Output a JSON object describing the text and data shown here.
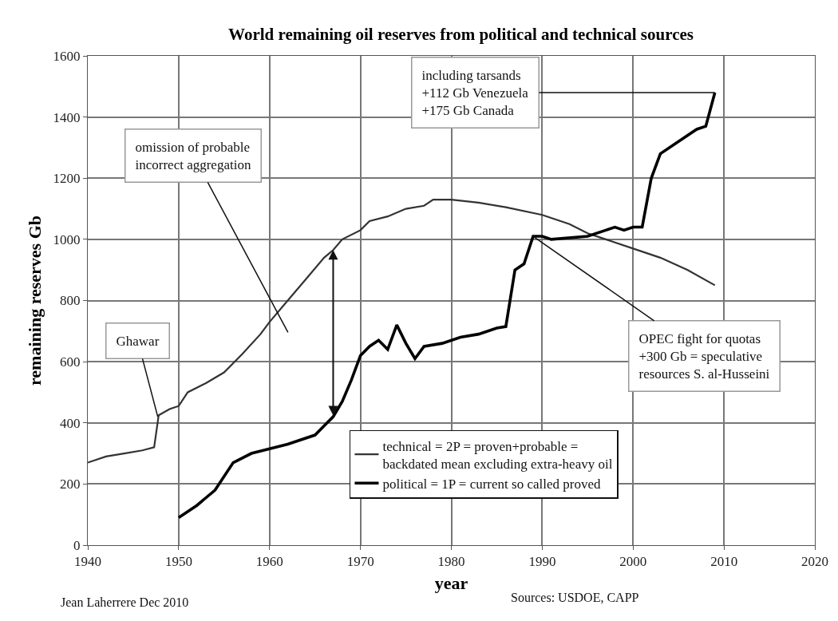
{
  "chart_data": {
    "type": "line",
    "title": "World remaining oil reserves from political and technical sources",
    "xlabel": "year",
    "ylabel": "remaining reserves Gb",
    "series": [
      {
        "name": "technical = 2P = proven+probable = backdated mean excluding extra-heavy oil",
        "color": "#333333",
        "x": [
          1940,
          1942,
          1944,
          1946,
          1947.3,
          1947.8,
          1949,
          1950,
          1951,
          1953,
          1955,
          1957,
          1959,
          1960,
          1962,
          1964,
          1966,
          1967,
          1968,
          1970,
          1971,
          1973,
          1975,
          1977,
          1978,
          1980,
          1983,
          1986,
          1990,
          1993,
          1995,
          1997,
          2000,
          2003,
          2006,
          2009
        ],
        "values": [
          270,
          290,
          300,
          310,
          320,
          425,
          445,
          455,
          500,
          530,
          565,
          625,
          690,
          730,
          800,
          870,
          940,
          965,
          1000,
          1030,
          1060,
          1075,
          1100,
          1110,
          1130,
          1130,
          1120,
          1105,
          1080,
          1050,
          1020,
          1000,
          970,
          940,
          900,
          850
        ]
      },
      {
        "name": "political = 1P = current so called proved",
        "color": "#000000",
        "x": [
          1950,
          1952,
          1954,
          1956,
          1958,
          1960,
          1962,
          1965,
          1966,
          1967,
          1968,
          1969,
          1970,
          1971,
          1972,
          1973,
          1974,
          1975,
          1976,
          1977,
          1979,
          1981,
          1983,
          1985,
          1986,
          1987,
          1988,
          1989,
          1990,
          1991,
          1995,
          1997,
          1998,
          1999,
          2000,
          2001,
          2002,
          2003,
          2005,
          2007,
          2008,
          2009
        ],
        "values": [
          90,
          130,
          180,
          270,
          300,
          315,
          330,
          360,
          390,
          420,
          470,
          540,
          620,
          650,
          670,
          640,
          720,
          660,
          610,
          650,
          660,
          680,
          690,
          710,
          715,
          900,
          920,
          1010,
          1010,
          1000,
          1010,
          1030,
          1040,
          1030,
          1040,
          1040,
          1200,
          1280,
          1320,
          1360,
          1370,
          1480
        ]
      }
    ],
    "xlim": [
      1940,
      2020
    ],
    "xticks": [
      1940,
      1950,
      1960,
      1970,
      1980,
      1990,
      2000,
      2010,
      2020
    ],
    "ylim": [
      0,
      1600
    ],
    "yticks": [
      0,
      200,
      400,
      600,
      800,
      1000,
      1200,
      1400,
      1600
    ],
    "grid": true,
    "legend": "bottom right",
    "marker": "none",
    "line_style": "solid",
    "annotations": [
      {
        "text": "Ghawar",
        "x": 1947.7,
        "y": 420
      },
      {
        "text": "omission of probable\nincorrect aggregation",
        "x": 1967,
        "y": 420
      },
      {
        "text": "including tarsands\n+112 Gb Venezuela\n+175 Gb Canada",
        "x": 2009,
        "y": 1480
      },
      {
        "text": "OPEC fight for quotas\n+300 Gb = speculative\nresources S. al-Husseini",
        "x": 1989,
        "y": 1010
      },
      "Jean Laherrere Dec 2010",
      "Sources: USDOE, CAPP"
    ]
  }
}
